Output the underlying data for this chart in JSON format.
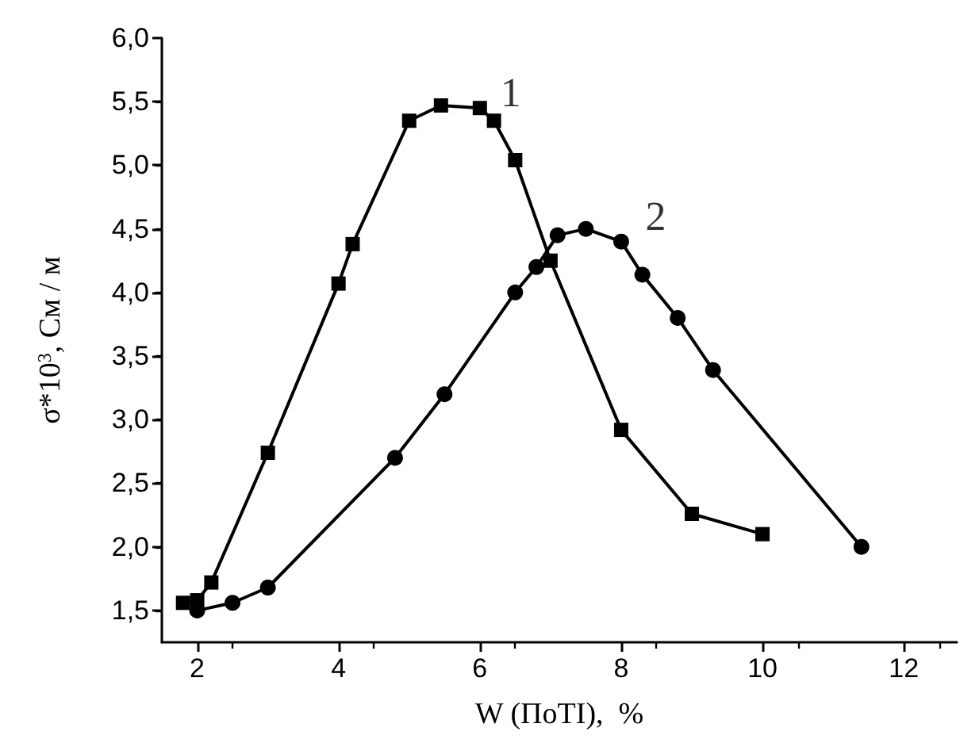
{
  "chart_data": {
    "type": "line",
    "xlabel": "W (ПоТI),  %",
    "ylabel": "σ*10$^{3}$, См / м",
    "xlim": [
      1.5,
      12.75
    ],
    "xticks": [
      2,
      4,
      6,
      8,
      10,
      12
    ],
    "ylim": [
      1.25,
      6.0
    ],
    "yticks": [
      {
        "value": 1.5,
        "label": "1,5"
      },
      {
        "value": 2.0,
        "label": "2,0"
      },
      {
        "value": 2.5,
        "label": "2,5"
      },
      {
        "value": 3.0,
        "label": "3,0"
      },
      {
        "value": 3.5,
        "label": "3,5"
      },
      {
        "value": 4.0,
        "label": "4,0"
      },
      {
        "value": 4.5,
        "label": "4,5"
      },
      {
        "value": 5.0,
        "label": "5,0"
      },
      {
        "value": 5.5,
        "label": "5,5"
      },
      {
        "value": 6.0,
        "label": "6,0"
      }
    ],
    "line_style": "solid",
    "series": [
      {
        "color": "#000000",
        "marker": "square",
        "x": [
          1.8,
          2.0,
          2.2,
          3.0,
          4.0,
          4.2,
          5.0,
          5.45,
          6.0,
          6.2,
          6.5,
          7.0,
          8.0,
          9.0,
          10.0
        ],
        "values": [
          1.56,
          1.58,
          1.72,
          2.74,
          4.07,
          4.38,
          5.35,
          5.47,
          5.45,
          5.35,
          5.04,
          4.25,
          2.92,
          2.26,
          2.1
        ]
      },
      {
        "color": "#000000",
        "marker": "circle",
        "x": [
          2.0,
          2.5,
          3.0,
          4.8,
          5.5,
          6.5,
          6.8,
          7.1,
          7.5,
          8.0,
          8.3,
          8.8,
          9.3,
          11.4
        ],
        "values": [
          1.5,
          1.56,
          1.68,
          2.7,
          3.2,
          4.0,
          4.2,
          4.45,
          4.5,
          4.4,
          4.14,
          3.8,
          3.39,
          2.0
        ]
      }
    ],
    "annotations": [
      "1",
      "2"
    ]
  }
}
